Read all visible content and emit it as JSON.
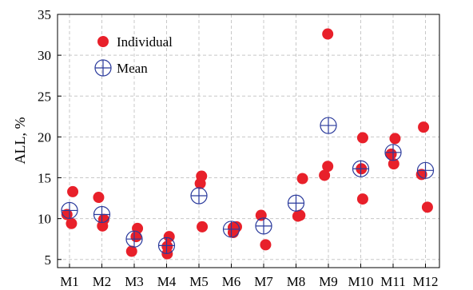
{
  "chart_data": {
    "type": "scatter",
    "title": "",
    "xlabel": "",
    "ylabel": "ALL, %",
    "ylim": [
      4,
      35
    ],
    "yticks": [
      5,
      10,
      15,
      20,
      25,
      30,
      35
    ],
    "categories": [
      "M1",
      "M2",
      "M3",
      "M4",
      "M5",
      "M6",
      "M7",
      "M8",
      "M9",
      "M10",
      "M11",
      "M12"
    ],
    "grid": true,
    "legend_position": "top-left",
    "series": [
      {
        "name": "Individual",
        "marker": "filled-circle",
        "color": "#e8202a",
        "points": [
          {
            "x": "M1",
            "offset": 0.1,
            "y": 13.3
          },
          {
            "x": "M1",
            "offset": -0.08,
            "y": 10.5
          },
          {
            "x": "M1",
            "offset": 0.06,
            "y": 9.4
          },
          {
            "x": "M2",
            "offset": -0.1,
            "y": 12.6
          },
          {
            "x": "M2",
            "offset": 0.06,
            "y": 9.9
          },
          {
            "x": "M2",
            "offset": 0.02,
            "y": 9.1
          },
          {
            "x": "M3",
            "offset": 0.1,
            "y": 8.8
          },
          {
            "x": "M3",
            "offset": 0.06,
            "y": 7.8
          },
          {
            "x": "M3",
            "offset": -0.08,
            "y": 6.0
          },
          {
            "x": "M4",
            "offset": 0.08,
            "y": 7.8
          },
          {
            "x": "M4",
            "offset": 0.02,
            "y": 6.6
          },
          {
            "x": "M4",
            "offset": 0.02,
            "y": 5.7
          },
          {
            "x": "M5",
            "offset": 0.08,
            "y": 15.2
          },
          {
            "x": "M5",
            "offset": 0.04,
            "y": 14.3
          },
          {
            "x": "M5",
            "offset": 0.1,
            "y": 9.0
          },
          {
            "x": "M6",
            "offset": 0.16,
            "y": 9.0
          },
          {
            "x": "M6",
            "offset": 0.06,
            "y": 8.9
          },
          {
            "x": "M6",
            "offset": 0.06,
            "y": 8.3
          },
          {
            "x": "M7",
            "offset": -0.08,
            "y": 10.4
          },
          {
            "x": "M7",
            "offset": 0.06,
            "y": 6.8
          },
          {
            "x": "M8",
            "offset": 0.2,
            "y": 14.9
          },
          {
            "x": "M8",
            "offset": 0.12,
            "y": 10.4
          },
          {
            "x": "M8",
            "offset": 0.06,
            "y": 10.3
          },
          {
            "x": "M9",
            "offset": -0.02,
            "y": 32.6
          },
          {
            "x": "M9",
            "offset": -0.02,
            "y": 16.4
          },
          {
            "x": "M9",
            "offset": -0.12,
            "y": 15.3
          },
          {
            "x": "M10",
            "offset": 0.06,
            "y": 19.9
          },
          {
            "x": "M10",
            "offset": 0.02,
            "y": 16.1
          },
          {
            "x": "M10",
            "offset": 0.06,
            "y": 12.4
          },
          {
            "x": "M11",
            "offset": 0.06,
            "y": 19.8
          },
          {
            "x": "M11",
            "offset": -0.06,
            "y": 17.9
          },
          {
            "x": "M11",
            "offset": 0.02,
            "y": 16.7
          },
          {
            "x": "M12",
            "offset": -0.06,
            "y": 21.2
          },
          {
            "x": "M12",
            "offset": -0.12,
            "y": 15.4
          },
          {
            "x": "M12",
            "offset": 0.06,
            "y": 11.4
          }
        ]
      },
      {
        "name": "Mean",
        "marker": "crossed-circle",
        "color": "#2a3a9c",
        "points": [
          {
            "x": "M1",
            "offset": 0,
            "y": 11.0
          },
          {
            "x": "M2",
            "offset": 0,
            "y": 10.5
          },
          {
            "x": "M3",
            "offset": 0,
            "y": 7.5
          },
          {
            "x": "M4",
            "offset": 0,
            "y": 6.7
          },
          {
            "x": "M5",
            "offset": 0,
            "y": 12.8
          },
          {
            "x": "M6",
            "offset": 0,
            "y": 8.7
          },
          {
            "x": "M7",
            "offset": 0,
            "y": 9.1
          },
          {
            "x": "M8",
            "offset": 0,
            "y": 11.9
          },
          {
            "x": "M9",
            "offset": 0,
            "y": 21.4
          },
          {
            "x": "M10",
            "offset": 0,
            "y": 16.1
          },
          {
            "x": "M11",
            "offset": 0,
            "y": 18.1
          },
          {
            "x": "M12",
            "offset": 0,
            "y": 15.9
          }
        ]
      }
    ]
  }
}
